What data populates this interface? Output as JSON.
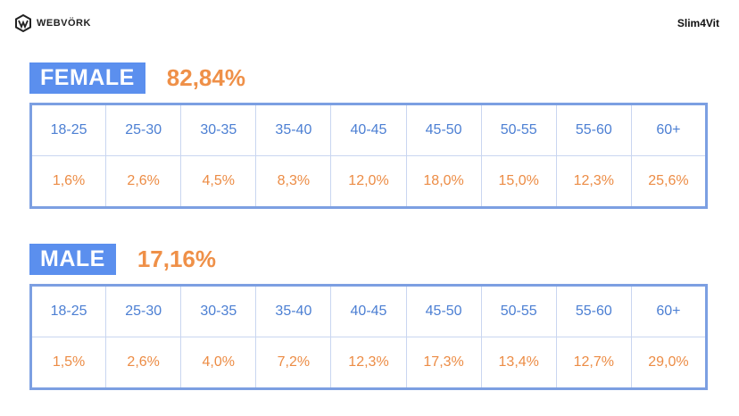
{
  "header": {
    "logo": "WEBVÖRK",
    "brand": "Slim4Vit"
  },
  "sections": [
    {
      "label": "FEMALE",
      "share": "82,84%",
      "ages": [
        "18-25",
        "25-30",
        "30-35",
        "35-40",
        "40-45",
        "45-50",
        "50-55",
        "55-60",
        "60+"
      ],
      "values": [
        "1,6%",
        "2,6%",
        "4,5%",
        "8,3%",
        "12,0%",
        "18,0%",
        "15,0%",
        "12,3%",
        "25,6%"
      ]
    },
    {
      "label": "MALE",
      "share": "17,16%",
      "ages": [
        "18-25",
        "25-30",
        "30-35",
        "35-40",
        "40-45",
        "45-50",
        "50-55",
        "55-60",
        "60+"
      ],
      "values": [
        "1,5%",
        "2,6%",
        "4,0%",
        "7,2%",
        "12,3%",
        "17,3%",
        "13,4%",
        "12,7%",
        "29,0%"
      ]
    }
  ]
}
